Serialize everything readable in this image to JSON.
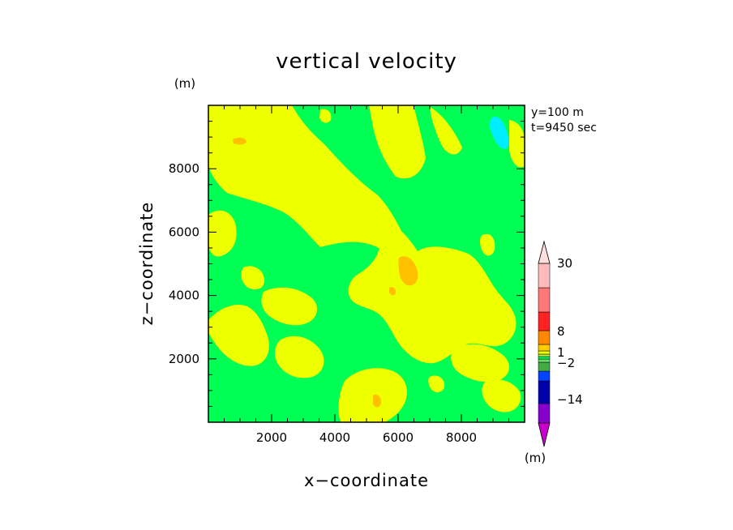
{
  "chart_data": {
    "type": "heatmap",
    "title": "vertical velocity",
    "xlabel": "x−coordinate",
    "ylabel": "z−coordinate",
    "unit_top": "(m)",
    "unit_colorbar": "(m)",
    "annotation_line1": "y=100 m",
    "annotation_line2": "t=9450 sec",
    "xlim": [
      0,
      10000
    ],
    "ylim": [
      0,
      10000
    ],
    "x_ticks": [
      2000,
      4000,
      6000,
      8000
    ],
    "y_ticks": [
      2000,
      4000,
      6000,
      8000
    ],
    "x_tick_labels": [
      "2000",
      "4000",
      "6000",
      "8000"
    ],
    "y_tick_labels": [
      "2000",
      "4000",
      "6000",
      "8000"
    ],
    "colorbar": {
      "label_values": [
        "30",
        "8",
        "1",
        "−2",
        "−14"
      ],
      "colors": [
        "#cc00cc",
        "#8800cc",
        "#0000aa",
        "#0044ff",
        "#44aa44",
        "#66dd66",
        "#00ff66",
        "#bbee44",
        "#eeff00",
        "#ffcc00",
        "#ff8800",
        "#ff2222",
        "#ff7777",
        "#ffbbbb",
        "#ffdddd"
      ]
    },
    "fill_colors": {
      "background": "#00ff55",
      "positive": "#eeff00",
      "strong_positive": "#ffc000",
      "negative": "#00eeff"
    }
  }
}
